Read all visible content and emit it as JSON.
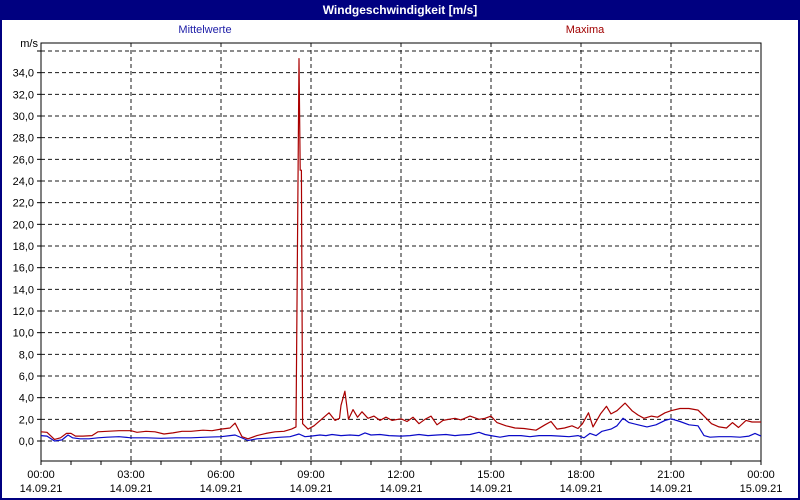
{
  "window": {
    "title": "Windgeschwindigkeit [m/s]"
  },
  "legend": {
    "mean_label": "Mittelwerte",
    "max_label": "Maxima"
  },
  "axis": {
    "unit_label": "m/s"
  },
  "colors": {
    "titlebar_bg": "#000080",
    "title_text": "#ffffff",
    "window_border": "#000080",
    "background": "#ffffff",
    "grid": "#1a1a1a",
    "frame": "#000000",
    "mean_line": "#0a0ac8",
    "max_line": "#aa0000",
    "mean_label_text": "#2020a8",
    "max_label_text": "#a00000",
    "tick_text": "#000000"
  },
  "chart_data": {
    "type": "line",
    "title": "Windgeschwindigkeit [m/s]",
    "xlabel": "",
    "ylabel": "m/s",
    "grid": "dashed",
    "legend_position": "top",
    "ylim": [
      -1.85,
      36.75
    ],
    "y_tick_step": 2,
    "y_tick_label_max": 34,
    "y_gridline_max": 36,
    "y_tick_labels": [
      "0,0",
      "2,0",
      "4,0",
      "6,0",
      "8,0",
      "10,0",
      "12,0",
      "14,0",
      "16,0",
      "18,0",
      "20,0",
      "22,0",
      "24,0",
      "26,0",
      "28,0",
      "30,0",
      "32,0",
      "34,0"
    ],
    "x_range_hours": [
      0,
      24
    ],
    "x_minor_tick_hours": 1,
    "x_major_gridline_hours": 3,
    "x_ticks": [
      {
        "hour": 0,
        "time": "00:00",
        "date": "14.09.21"
      },
      {
        "hour": 3,
        "time": "03:00",
        "date": "14.09.21"
      },
      {
        "hour": 6,
        "time": "06:00",
        "date": "14.09.21"
      },
      {
        "hour": 9,
        "time": "09:00",
        "date": "14.09.21"
      },
      {
        "hour": 12,
        "time": "12:00",
        "date": "14.09.21"
      },
      {
        "hour": 15,
        "time": "15:00",
        "date": "14.09.21"
      },
      {
        "hour": 18,
        "time": "18:00",
        "date": "14.09.21"
      },
      {
        "hour": 21,
        "time": "21:00",
        "date": "14.09.21"
      },
      {
        "hour": 24,
        "time": "00:00",
        "date": "15.09.21"
      }
    ],
    "series": [
      {
        "name": "Mittelwerte",
        "color": "#0a0ac8",
        "points": [
          [
            0,
            0.5
          ],
          [
            0.2,
            0.45
          ],
          [
            0.45,
            0.0
          ],
          [
            0.7,
            0.1
          ],
          [
            0.9,
            0.55
          ],
          [
            1.05,
            0.3
          ],
          [
            1.3,
            0.2
          ],
          [
            1.6,
            0.2
          ],
          [
            1.9,
            0.3
          ],
          [
            2.2,
            0.35
          ],
          [
            2.6,
            0.4
          ],
          [
            3.0,
            0.3
          ],
          [
            3.5,
            0.3
          ],
          [
            4.0,
            0.25
          ],
          [
            4.5,
            0.3
          ],
          [
            5.0,
            0.3
          ],
          [
            5.5,
            0.35
          ],
          [
            6.0,
            0.4
          ],
          [
            6.3,
            0.5
          ],
          [
            6.47,
            0.55
          ],
          [
            6.9,
            0.05
          ],
          [
            7.2,
            0.2
          ],
          [
            7.5,
            0.25
          ],
          [
            8.0,
            0.35
          ],
          [
            8.3,
            0.4
          ],
          [
            8.6,
            0.65
          ],
          [
            8.8,
            0.4
          ],
          [
            9.0,
            0.45
          ],
          [
            9.3,
            0.55
          ],
          [
            9.5,
            0.5
          ],
          [
            9.7,
            0.6
          ],
          [
            10.0,
            0.5
          ],
          [
            10.3,
            0.55
          ],
          [
            10.6,
            0.5
          ],
          [
            10.8,
            0.75
          ],
          [
            11.0,
            0.55
          ],
          [
            11.3,
            0.6
          ],
          [
            11.6,
            0.5
          ],
          [
            12.0,
            0.45
          ],
          [
            12.3,
            0.5
          ],
          [
            12.6,
            0.6
          ],
          [
            12.9,
            0.5
          ],
          [
            13.2,
            0.55
          ],
          [
            13.5,
            0.6
          ],
          [
            13.8,
            0.5
          ],
          [
            14.0,
            0.55
          ],
          [
            14.3,
            0.6
          ],
          [
            14.6,
            0.8
          ],
          [
            14.8,
            0.6
          ],
          [
            15.0,
            0.5
          ],
          [
            15.3,
            0.35
          ],
          [
            15.6,
            0.5
          ],
          [
            16.0,
            0.5
          ],
          [
            16.3,
            0.4
          ],
          [
            16.6,
            0.5
          ],
          [
            17.0,
            0.5
          ],
          [
            17.3,
            0.45
          ],
          [
            17.6,
            0.4
          ],
          [
            17.9,
            0.5
          ],
          [
            18.1,
            0.3
          ],
          [
            18.3,
            0.7
          ],
          [
            18.5,
            0.5
          ],
          [
            18.7,
            0.9
          ],
          [
            19.0,
            1.1
          ],
          [
            19.2,
            1.4
          ],
          [
            19.4,
            2.1
          ],
          [
            19.6,
            1.7
          ],
          [
            19.9,
            1.5
          ],
          [
            20.2,
            1.3
          ],
          [
            20.5,
            1.5
          ],
          [
            20.8,
            1.9
          ],
          [
            21.0,
            2.05
          ],
          [
            21.3,
            1.8
          ],
          [
            21.6,
            1.5
          ],
          [
            21.9,
            1.4
          ],
          [
            22.1,
            0.5
          ],
          [
            22.3,
            0.35
          ],
          [
            22.6,
            0.4
          ],
          [
            23.0,
            0.4
          ],
          [
            23.3,
            0.35
          ],
          [
            23.6,
            0.45
          ],
          [
            23.8,
            0.7
          ],
          [
            24,
            0.45
          ]
        ]
      },
      {
        "name": "Maxima",
        "color": "#aa0000",
        "points": [
          [
            0,
            0.85
          ],
          [
            0.2,
            0.8
          ],
          [
            0.45,
            0.15
          ],
          [
            0.65,
            0.3
          ],
          [
            0.85,
            0.7
          ],
          [
            1.0,
            0.7
          ],
          [
            1.15,
            0.45
          ],
          [
            1.4,
            0.45
          ],
          [
            1.7,
            0.5
          ],
          [
            1.9,
            0.85
          ],
          [
            2.2,
            0.9
          ],
          [
            2.6,
            0.95
          ],
          [
            3.0,
            0.95
          ],
          [
            3.2,
            0.8
          ],
          [
            3.5,
            0.9
          ],
          [
            3.8,
            0.85
          ],
          [
            4.1,
            0.65
          ],
          [
            4.4,
            0.75
          ],
          [
            4.7,
            0.9
          ],
          [
            5.0,
            0.9
          ],
          [
            5.4,
            1.0
          ],
          [
            5.7,
            0.95
          ],
          [
            6.0,
            1.1
          ],
          [
            6.3,
            1.2
          ],
          [
            6.47,
            1.65
          ],
          [
            6.7,
            0.4
          ],
          [
            6.9,
            0.2
          ],
          [
            7.2,
            0.5
          ],
          [
            7.5,
            0.7
          ],
          [
            7.8,
            0.85
          ],
          [
            8.1,
            0.9
          ],
          [
            8.35,
            1.1
          ],
          [
            8.5,
            1.3
          ],
          [
            8.6,
            35.3
          ],
          [
            8.64,
            25.0
          ],
          [
            8.68,
            25.0
          ],
          [
            8.72,
            1.6
          ],
          [
            8.9,
            1.1
          ],
          [
            9.1,
            1.4
          ],
          [
            9.35,
            2.0
          ],
          [
            9.6,
            2.6
          ],
          [
            9.8,
            1.9
          ],
          [
            9.95,
            2.1
          ],
          [
            10.0,
            3.3
          ],
          [
            10.13,
            4.6
          ],
          [
            10.25,
            2.0
          ],
          [
            10.4,
            2.9
          ],
          [
            10.55,
            2.2
          ],
          [
            10.7,
            2.7
          ],
          [
            10.9,
            2.1
          ],
          [
            11.1,
            2.3
          ],
          [
            11.3,
            1.9
          ],
          [
            11.5,
            2.2
          ],
          [
            11.7,
            1.9
          ],
          [
            11.9,
            2.0
          ],
          [
            12.0,
            2.05
          ],
          [
            12.2,
            1.8
          ],
          [
            12.4,
            2.2
          ],
          [
            12.6,
            1.6
          ],
          [
            12.8,
            2.0
          ],
          [
            13.0,
            2.3
          ],
          [
            13.2,
            1.5
          ],
          [
            13.4,
            1.9
          ],
          [
            13.6,
            2.0
          ],
          [
            13.8,
            2.1
          ],
          [
            14.0,
            1.95
          ],
          [
            14.3,
            2.3
          ],
          [
            14.6,
            2.0
          ],
          [
            14.8,
            2.1
          ],
          [
            15.0,
            2.3
          ],
          [
            15.2,
            1.7
          ],
          [
            15.5,
            1.4
          ],
          [
            15.8,
            1.2
          ],
          [
            16.1,
            1.15
          ],
          [
            16.5,
            1.0
          ],
          [
            16.8,
            1.5
          ],
          [
            17.0,
            1.8
          ],
          [
            17.2,
            1.1
          ],
          [
            17.45,
            1.2
          ],
          [
            17.7,
            1.4
          ],
          [
            17.9,
            1.15
          ],
          [
            18.05,
            1.6
          ],
          [
            18.25,
            2.6
          ],
          [
            18.4,
            1.3
          ],
          [
            18.65,
            2.5
          ],
          [
            18.85,
            3.2
          ],
          [
            19.0,
            2.5
          ],
          [
            19.2,
            2.8
          ],
          [
            19.47,
            3.5
          ],
          [
            19.7,
            2.8
          ],
          [
            19.9,
            2.4
          ],
          [
            20.1,
            2.1
          ],
          [
            20.35,
            2.3
          ],
          [
            20.55,
            2.2
          ],
          [
            20.8,
            2.6
          ],
          [
            21.0,
            2.8
          ],
          [
            21.3,
            3.0
          ],
          [
            21.6,
            3.0
          ],
          [
            21.9,
            2.85
          ],
          [
            22.1,
            2.3
          ],
          [
            22.35,
            1.6
          ],
          [
            22.6,
            1.3
          ],
          [
            22.85,
            1.2
          ],
          [
            23.05,
            1.7
          ],
          [
            23.25,
            1.25
          ],
          [
            23.5,
            1.9
          ],
          [
            23.7,
            1.75
          ],
          [
            24,
            1.75
          ]
        ]
      }
    ]
  }
}
